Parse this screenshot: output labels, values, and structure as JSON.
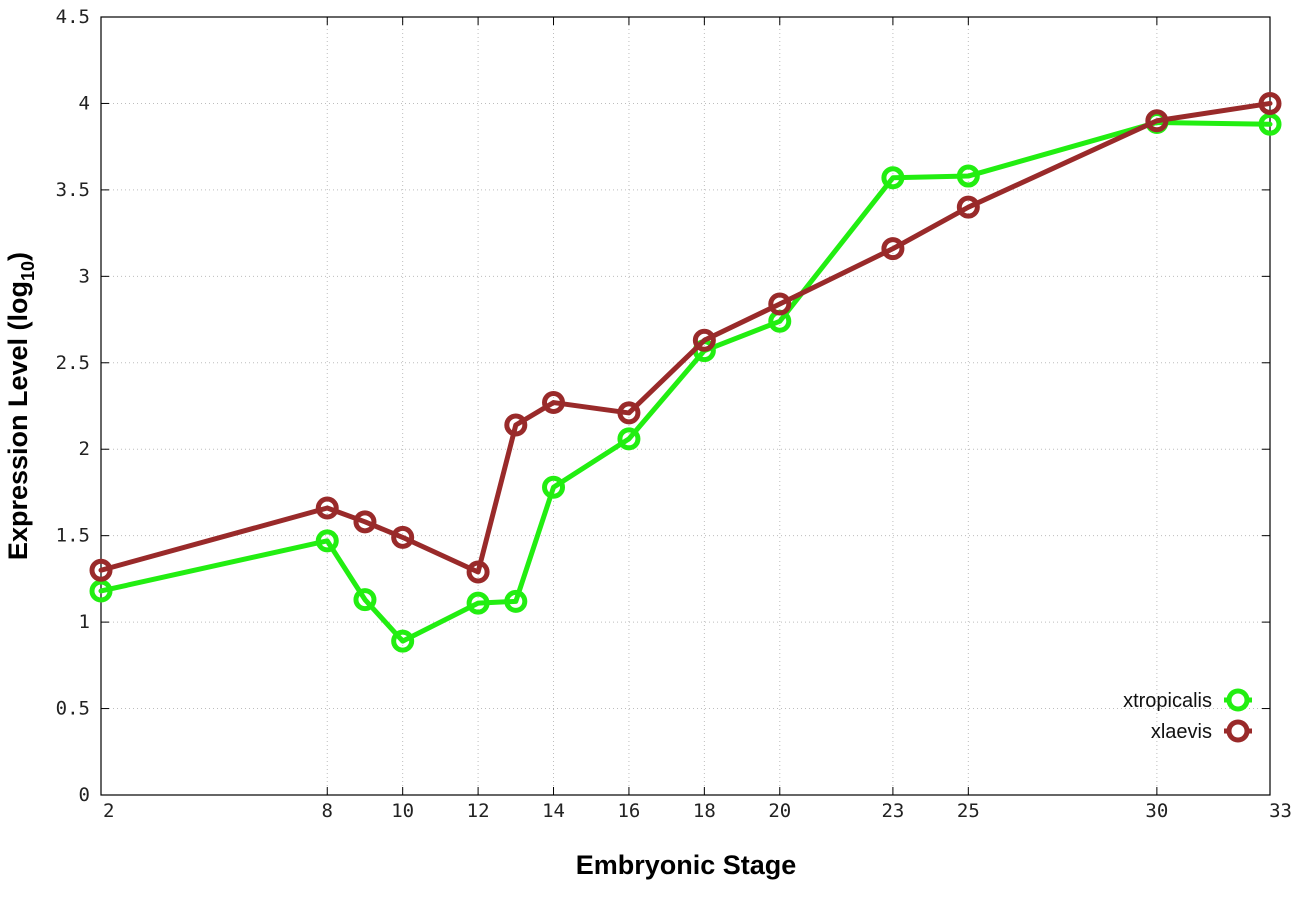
{
  "chart_data": {
    "type": "line",
    "title": "",
    "xlabel": "Embryonic Stage",
    "ylabel_main": "Expression Level (log",
    "ylabel_sub": "10",
    "ylabel_close": ")",
    "ylim": [
      0,
      4.5
    ],
    "xlim": [
      2,
      33
    ],
    "grid": true,
    "legend_position": "bottom-right",
    "x": [
      2,
      8,
      9,
      10,
      12,
      13,
      14,
      16,
      18,
      20,
      23,
      25,
      30,
      33
    ],
    "x_tick_labels": [
      "2",
      "8",
      "10",
      "12",
      "14",
      "16",
      "18",
      "20",
      "23",
      "25",
      "30",
      "33"
    ],
    "y_tick_labels": [
      "0",
      "0.5",
      "1",
      "1.5",
      "2",
      "2.5",
      "3",
      "3.5",
      "4",
      "4.5"
    ],
    "series": [
      {
        "name": "xtropicalis",
        "color": "#22ee11",
        "values": [
          1.18,
          1.47,
          1.13,
          0.89,
          1.11,
          1.12,
          1.78,
          2.06,
          2.57,
          2.74,
          3.57,
          3.58,
          3.89,
          3.88
        ]
      },
      {
        "name": "xlaevis",
        "color": "#992a2a",
        "values": [
          1.3,
          1.66,
          1.58,
          1.49,
          1.29,
          2.14,
          2.27,
          2.21,
          2.63,
          2.84,
          3.16,
          3.4,
          3.9,
          4.0
        ]
      }
    ]
  }
}
